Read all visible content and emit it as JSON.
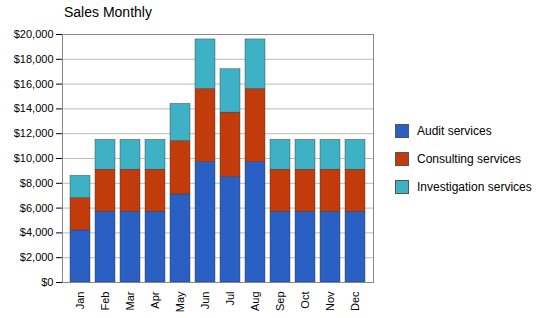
{
  "chart_data": {
    "type": "bar",
    "title": "Sales Monthly",
    "stacked": true,
    "grid": true,
    "legend": "right",
    "categories": [
      "Jan",
      "Feb",
      "Mar",
      "Apr",
      "May",
      "Jun",
      "Jul",
      "Aug",
      "Sep",
      "Oct",
      "Nov",
      "Dec"
    ],
    "series": [
      {
        "name": "Audit services",
        "color": "#2a5fc4",
        "values": [
          4200,
          5700,
          5700,
          5700,
          7100,
          9700,
          8500,
          9700,
          5700,
          5700,
          5700,
          5700
        ]
      },
      {
        "name": "Consulting services",
        "color": "#c23b0a",
        "values": [
          2600,
          3400,
          3400,
          3400,
          4300,
          5900,
          5200,
          5900,
          3400,
          3400,
          3400,
          3400
        ]
      },
      {
        "name": "Investigation services",
        "color": "#3fb1c4",
        "values": [
          1800,
          2400,
          2400,
          2400,
          3000,
          4000,
          3500,
          4000,
          2400,
          2400,
          2400,
          2400
        ]
      }
    ],
    "ylim": [
      0,
      20000
    ],
    "yticks": [
      {
        "value": 0,
        "label": "$0"
      },
      {
        "value": 2000,
        "label": "$2,000"
      },
      {
        "value": 4000,
        "label": "$4,000"
      },
      {
        "value": 6000,
        "label": "$6,000"
      },
      {
        "value": 8000,
        "label": "$8,000"
      },
      {
        "value": 10000,
        "label": "$10,000"
      },
      {
        "value": 12000,
        "label": "$12,000"
      },
      {
        "value": 14000,
        "label": "$14,000"
      },
      {
        "value": 16000,
        "label": "$16,000"
      },
      {
        "value": 18000,
        "label": "$18,000"
      },
      {
        "value": 20000,
        "label": "$20,000"
      }
    ]
  }
}
